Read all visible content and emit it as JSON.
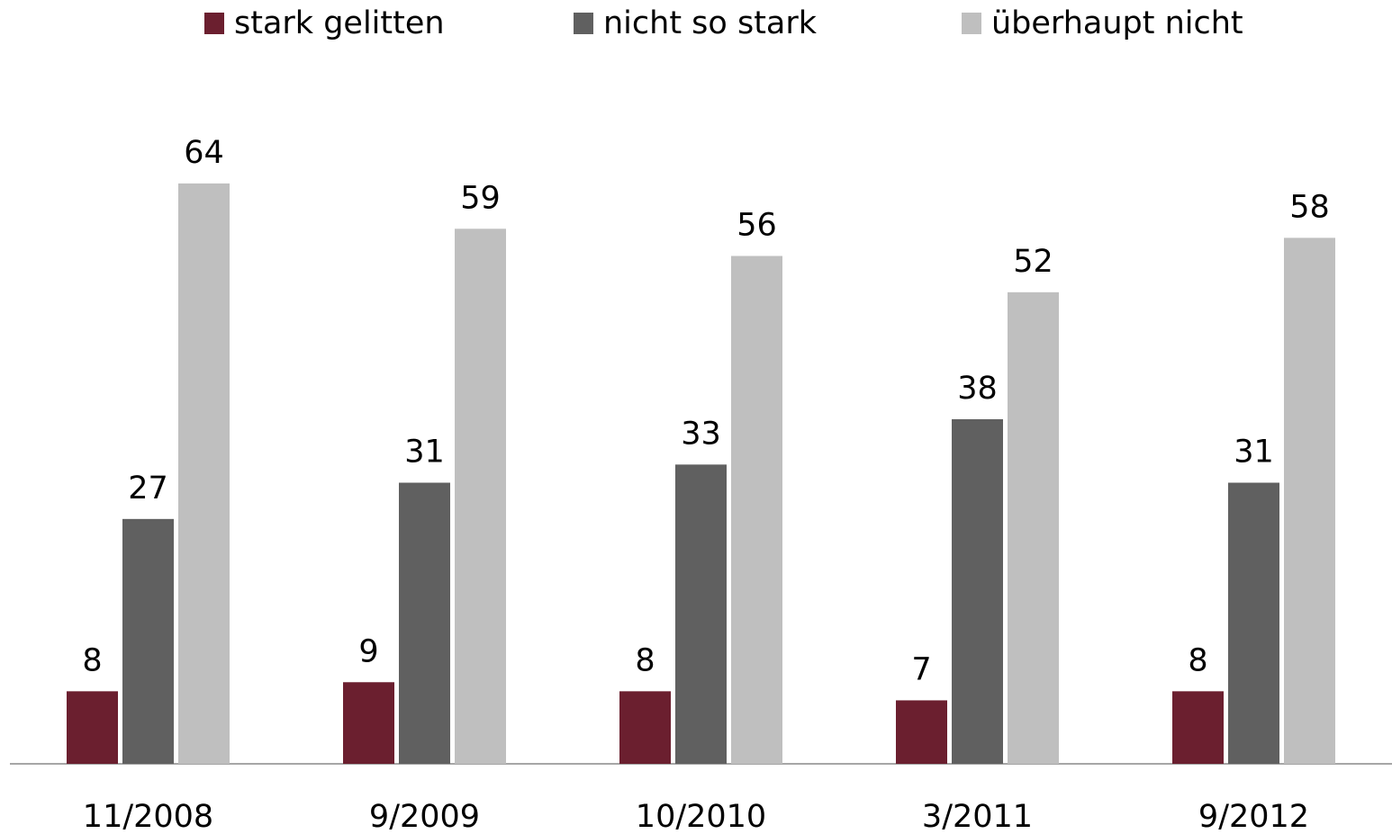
{
  "chart_data": {
    "type": "bar",
    "categories": [
      "11/2008",
      "9/2009",
      "10/2010",
      "3/2011",
      "9/2012"
    ],
    "series": [
      {
        "name": "stark gelitten",
        "color": "#6b1f2f",
        "values": [
          8,
          9,
          8,
          7,
          8
        ]
      },
      {
        "name": "nicht so stark",
        "color": "#606060",
        "values": [
          27,
          31,
          33,
          38,
          31
        ]
      },
      {
        "name": "überhaupt nicht",
        "color": "#bfbfbf",
        "values": [
          64,
          59,
          56,
          52,
          58
        ]
      }
    ],
    "legend": "top"
  }
}
